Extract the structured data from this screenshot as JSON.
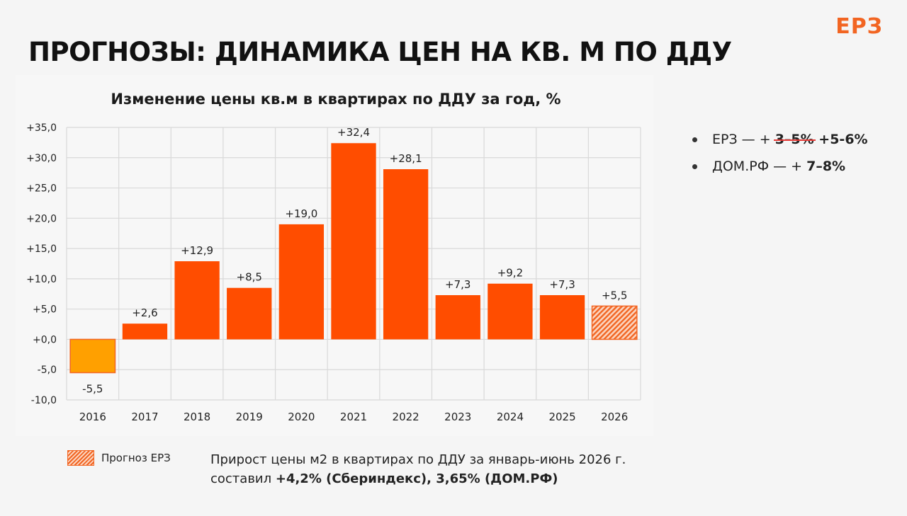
{
  "logo": "ЕРЗ",
  "page_title": "ПРОГНОЗЫ: ДИНАМИКА ЦЕН НА КВ. М ПО ДДУ",
  "chart_data": {
    "type": "bar",
    "title": "Изменение цены кв.м в квартирах по ДДУ за год, %",
    "categories": [
      "2016",
      "2017",
      "2018",
      "2019",
      "2020",
      "2021",
      "2022",
      "2023",
      "2024",
      "2025",
      "2026"
    ],
    "values": [
      -5.5,
      2.6,
      12.9,
      8.5,
      19.0,
      32.4,
      28.1,
      7.3,
      9.2,
      7.3,
      5.5
    ],
    "value_labels": [
      "-5,5",
      "+2,6",
      "+12,9",
      "+8,5",
      "+19,0",
      "+32,4",
      "+28,1",
      "+7,3",
      "+9,2",
      "+7,3",
      "+5,5"
    ],
    "forecast": [
      false,
      false,
      false,
      false,
      false,
      false,
      false,
      false,
      false,
      false,
      true
    ],
    "ylim": [
      -10,
      35
    ],
    "yticks": [
      35,
      30,
      25,
      20,
      15,
      10,
      5,
      0,
      -5,
      -10
    ],
    "ytick_labels": [
      "+35,0",
      "+30,0",
      "+25,0",
      "+20,0",
      "+15,0",
      "+10,0",
      "+5,0",
      "+0,0",
      "-5,0",
      "-10,0"
    ],
    "grid": true,
    "colors": {
      "positive": "#ff4d00",
      "negative": "#ffa000",
      "forecast": "#f26522",
      "grid": "#d9d9d9"
    }
  },
  "forecasts": {
    "erz_prefix": "ЕРЗ — + ",
    "erz_old": "3–5%",
    "erz_new": " +5-6%",
    "domrf_prefix": "ДОМ.РФ — + ",
    "domrf_value": "7–8%"
  },
  "legend": {
    "forecast_label": "Прогноз ЕРЗ"
  },
  "footnote": {
    "line1": "Прирост цены м2 в квартирах по ДДУ за январь-июнь 2026 г.",
    "line2_prefix": "составил ",
    "line2_bold": "+4,2% (Сбериндекс), 3,65% (ДОМ.РФ)"
  }
}
